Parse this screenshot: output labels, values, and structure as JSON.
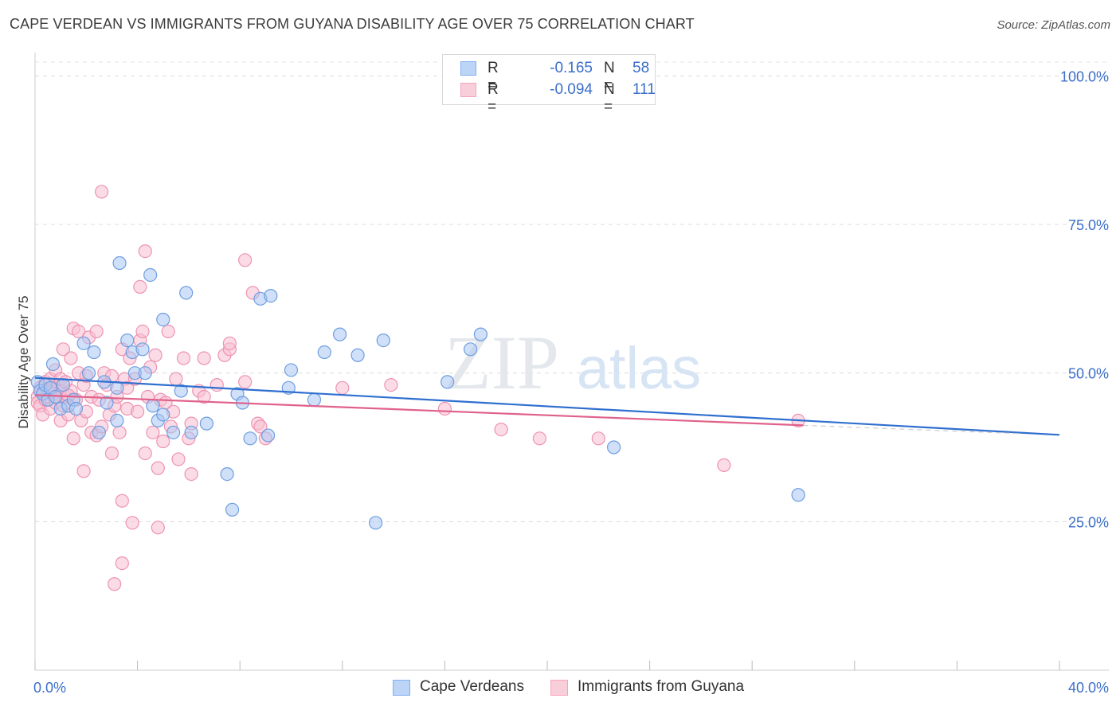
{
  "header": {
    "title": "CAPE VERDEAN VS IMMIGRANTS FROM GUYANA DISABILITY AGE OVER 75 CORRELATION CHART",
    "source": "Source: ZipAtlas.com"
  },
  "watermark": {
    "zip": "ZIP",
    "atlas": "atlas"
  },
  "legend": {
    "rows": [
      {
        "r_label": "R =",
        "r_value": "-0.165",
        "n_label": "N =",
        "n_value": "58",
        "color": "#7eaef0"
      },
      {
        "r_label": "R =",
        "r_value": "-0.094",
        "n_label": "N =",
        "n_value": "111",
        "color": "#f5a3bd"
      }
    ]
  },
  "bottom_legend": {
    "series1": "Cape Verdeans",
    "series2": "Immigrants from Guyana"
  },
  "colors": {
    "blue_line": "#2f6fcf",
    "blue_fill": "#a9c6f2",
    "blue_stroke": "#6f9ee0",
    "pink_line": "#e0628a",
    "pink_fill": "#f7c0d1",
    "pink_stroke": "#ee93b1",
    "axis_label": "#3b6fc9"
  },
  "chart_data": {
    "type": "scatter",
    "title": "CAPE VERDEAN VS IMMIGRANTS FROM GUYANA DISABILITY AGE OVER 75 CORRELATION CHART",
    "xlabel": "",
    "ylabel": "Disability Age Over 75",
    "xlim": [
      0,
      40
    ],
    "ylim": [
      0,
      105
    ],
    "x_tick_labels": [
      "0.0%",
      "40.0%"
    ],
    "y_ticks": [
      25,
      50,
      75,
      100
    ],
    "y_tick_labels": [
      "25.0%",
      "50.0%",
      "75.0%",
      "100.0%"
    ],
    "series": [
      {
        "name": "Cape Verdeans",
        "r": -0.165,
        "n": 58,
        "trend": {
          "x": [
            0,
            40
          ],
          "y": [
            49.2,
            39.6
          ]
        },
        "points": [
          [
            0.1,
            48.5
          ],
          [
            0.2,
            47.0
          ],
          [
            0.3,
            46.5
          ],
          [
            0.4,
            48.0
          ],
          [
            0.5,
            45.5
          ],
          [
            0.6,
            47.5
          ],
          [
            0.7,
            51.5
          ],
          [
            0.8,
            46.0
          ],
          [
            1.0,
            44.0
          ],
          [
            1.1,
            48.0
          ],
          [
            1.3,
            44.5
          ],
          [
            1.5,
            45.5
          ],
          [
            1.6,
            44.0
          ],
          [
            1.9,
            55.0
          ],
          [
            2.1,
            50.0
          ],
          [
            2.3,
            53.5
          ],
          [
            2.5,
            40.0
          ],
          [
            2.7,
            48.5
          ],
          [
            2.8,
            45.0
          ],
          [
            3.2,
            47.5
          ],
          [
            3.2,
            42.0
          ],
          [
            3.3,
            68.5
          ],
          [
            3.6,
            55.5
          ],
          [
            3.8,
            53.5
          ],
          [
            3.9,
            50.0
          ],
          [
            4.2,
            54.0
          ],
          [
            4.3,
            50.0
          ],
          [
            4.5,
            66.5
          ],
          [
            4.6,
            44.5
          ],
          [
            4.8,
            42.0
          ],
          [
            5.0,
            43.0
          ],
          [
            5.0,
            59.0
          ],
          [
            5.4,
            40.0
          ],
          [
            5.7,
            47.0
          ],
          [
            5.9,
            63.5
          ],
          [
            6.1,
            40.0
          ],
          [
            6.7,
            41.5
          ],
          [
            7.5,
            33.0
          ],
          [
            7.7,
            27.0
          ],
          [
            7.9,
            46.5
          ],
          [
            8.1,
            45.0
          ],
          [
            8.4,
            39.0
          ],
          [
            8.8,
            62.5
          ],
          [
            9.1,
            39.5
          ],
          [
            9.2,
            63.0
          ],
          [
            9.9,
            47.5
          ],
          [
            10.0,
            50.5
          ],
          [
            10.9,
            45.5
          ],
          [
            11.3,
            53.5
          ],
          [
            11.9,
            56.5
          ],
          [
            12.6,
            53.0
          ],
          [
            13.3,
            24.8
          ],
          [
            13.6,
            55.5
          ],
          [
            16.1,
            48.5
          ],
          [
            17.0,
            54.0
          ],
          [
            17.4,
            56.5
          ],
          [
            22.6,
            37.5
          ],
          [
            29.8,
            29.5
          ]
        ]
      },
      {
        "name": "Immigrants from Guyana",
        "r": -0.094,
        "n": 111,
        "trend": {
          "x": [
            0,
            30.0
          ],
          "y": [
            46.3,
            41.2
          ]
        },
        "trend_dashed": {
          "x": [
            30.0,
            38.5
          ],
          "y": [
            41.2,
            39.8
          ]
        },
        "points": [
          [
            0.1,
            46.0
          ],
          [
            0.1,
            45.0
          ],
          [
            0.2,
            47.5
          ],
          [
            0.2,
            44.5
          ],
          [
            0.3,
            46.5
          ],
          [
            0.3,
            43.0
          ],
          [
            0.4,
            48.5
          ],
          [
            0.4,
            45.5
          ],
          [
            0.5,
            47.0
          ],
          [
            0.5,
            46.0
          ],
          [
            0.6,
            49.0
          ],
          [
            0.6,
            44.0
          ],
          [
            0.7,
            46.5
          ],
          [
            0.7,
            47.5
          ],
          [
            0.8,
            45.0
          ],
          [
            0.8,
            50.5
          ],
          [
            0.9,
            46.0
          ],
          [
            0.9,
            48.0
          ],
          [
            1.0,
            47.0
          ],
          [
            1.0,
            42.0
          ],
          [
            1.0,
            49.0
          ],
          [
            1.1,
            54.0
          ],
          [
            1.1,
            44.5
          ],
          [
            1.2,
            46.0
          ],
          [
            1.2,
            48.5
          ],
          [
            1.3,
            43.0
          ],
          [
            1.4,
            52.5
          ],
          [
            1.4,
            47.0
          ],
          [
            1.5,
            57.5
          ],
          [
            1.5,
            39.0
          ],
          [
            1.6,
            45.5
          ],
          [
            1.7,
            50.0
          ],
          [
            1.7,
            57.0
          ],
          [
            1.8,
            42.0
          ],
          [
            1.9,
            48.0
          ],
          [
            1.9,
            33.5
          ],
          [
            2.0,
            49.5
          ],
          [
            2.0,
            43.5
          ],
          [
            2.1,
            56.0
          ],
          [
            2.2,
            40.0
          ],
          [
            2.2,
            46.0
          ],
          [
            2.4,
            39.5
          ],
          [
            2.4,
            57.0
          ],
          [
            2.5,
            45.5
          ],
          [
            2.6,
            41.0
          ],
          [
            2.6,
            80.5
          ],
          [
            2.7,
            50.0
          ],
          [
            2.8,
            48.0
          ],
          [
            2.9,
            43.0
          ],
          [
            3.0,
            49.5
          ],
          [
            3.0,
            36.5
          ],
          [
            3.1,
            44.5
          ],
          [
            3.2,
            46.0
          ],
          [
            3.3,
            40.0
          ],
          [
            3.4,
            54.0
          ],
          [
            3.4,
            28.5
          ],
          [
            3.4,
            18.0
          ],
          [
            3.5,
            49.0
          ],
          [
            3.6,
            47.5
          ],
          [
            3.6,
            44.0
          ],
          [
            3.7,
            52.5
          ],
          [
            3.8,
            24.8
          ],
          [
            3.9,
            49.0
          ],
          [
            4.0,
            43.5
          ],
          [
            4.1,
            55.5
          ],
          [
            4.1,
            64.5
          ],
          [
            4.2,
            57.0
          ],
          [
            4.3,
            70.5
          ],
          [
            4.3,
            36.5
          ],
          [
            4.4,
            46.0
          ],
          [
            4.5,
            51.0
          ],
          [
            4.6,
            40.0
          ],
          [
            4.7,
            53.0
          ],
          [
            4.8,
            24.0
          ],
          [
            4.8,
            34.0
          ],
          [
            4.9,
            45.5
          ],
          [
            5.0,
            38.5
          ],
          [
            5.1,
            45.0
          ],
          [
            5.2,
            57.0
          ],
          [
            5.3,
            41.0
          ],
          [
            5.4,
            43.5
          ],
          [
            5.5,
            49.0
          ],
          [
            5.6,
            35.5
          ],
          [
            5.8,
            52.5
          ],
          [
            6.0,
            39.0
          ],
          [
            6.1,
            41.5
          ],
          [
            6.1,
            33.0
          ],
          [
            6.4,
            47.0
          ],
          [
            6.6,
            46.0
          ],
          [
            6.6,
            52.5
          ],
          [
            7.1,
            48.0
          ],
          [
            7.4,
            53.0
          ],
          [
            7.6,
            54.0
          ],
          [
            7.6,
            55.0
          ],
          [
            8.2,
            69.0
          ],
          [
            8.2,
            48.5
          ],
          [
            8.5,
            63.5
          ],
          [
            8.7,
            41.5
          ],
          [
            8.8,
            41.0
          ],
          [
            3.1,
            14.5
          ],
          [
            9.0,
            39.0
          ],
          [
            12.0,
            47.5
          ],
          [
            13.9,
            48.0
          ],
          [
            16.0,
            44.0
          ],
          [
            18.2,
            40.5
          ],
          [
            19.7,
            39.0
          ],
          [
            22.0,
            39.0
          ],
          [
            26.9,
            34.5
          ],
          [
            29.8,
            42.0
          ],
          [
            0.6,
            46.8
          ],
          [
            1.3,
            46.2
          ]
        ]
      }
    ]
  }
}
